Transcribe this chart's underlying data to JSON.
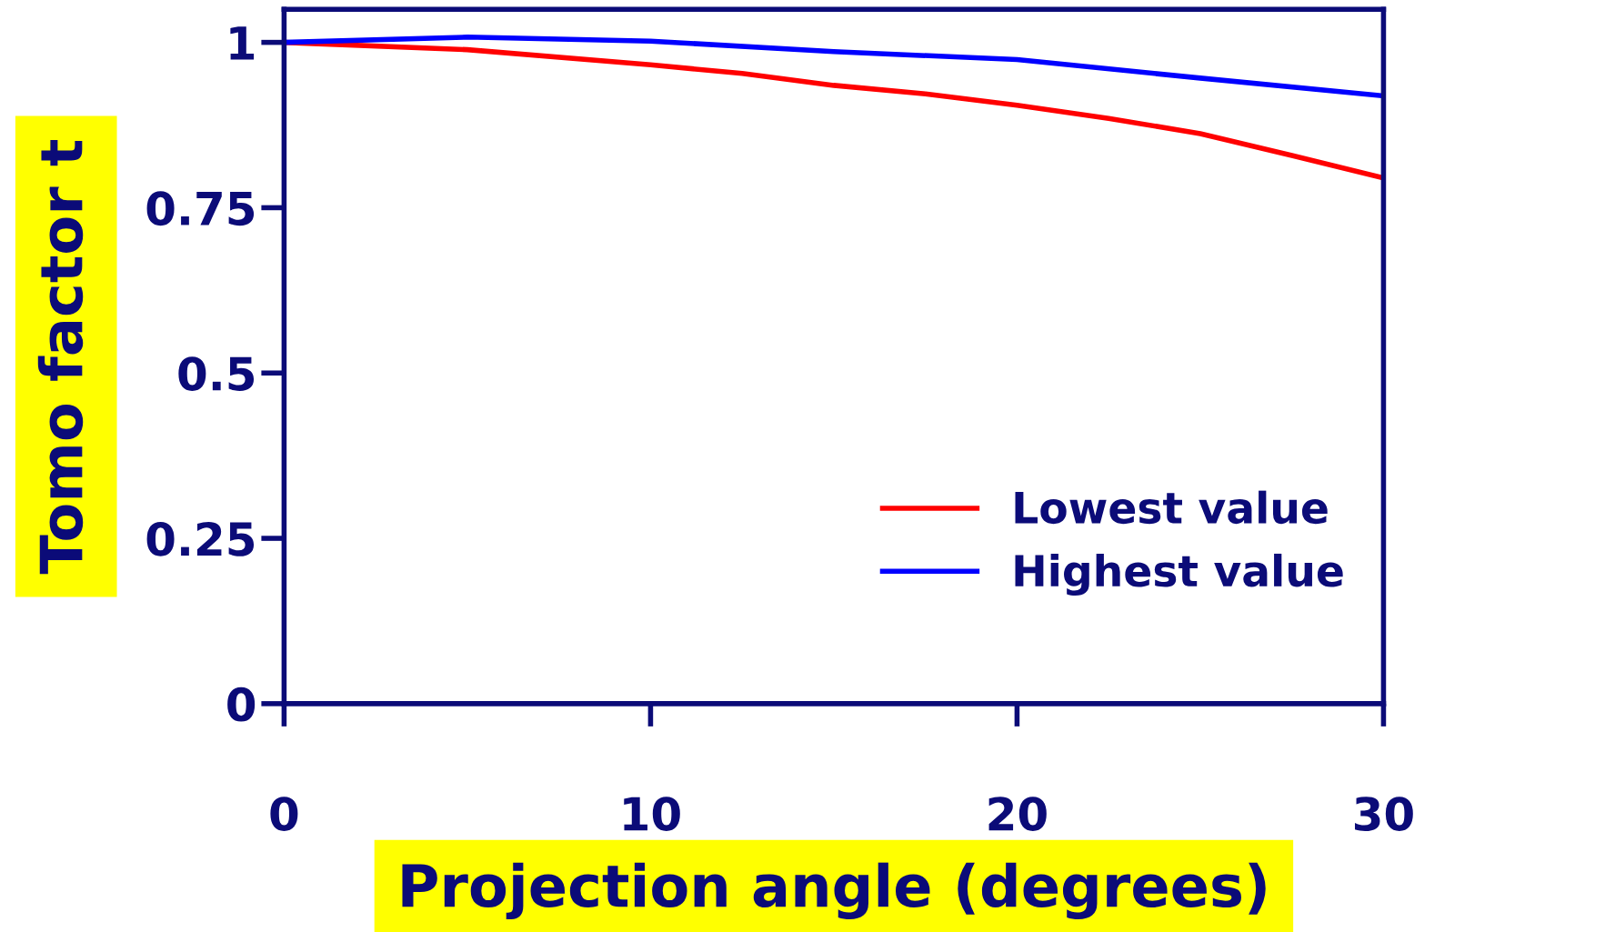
{
  "chart_data": {
    "type": "line",
    "xlabel": "Projection angle (degrees)",
    "ylabel": "Tomo factor t",
    "x": [
      0,
      5,
      10,
      12.5,
      15,
      17.5,
      20,
      22.5,
      25,
      27.5,
      30
    ],
    "series": [
      {
        "name": "Lowest value",
        "color": "#ff0000",
        "values": [
          1,
          0.989,
          0.966,
          0.953,
          0.935,
          0.922,
          0.905,
          0.885,
          0.862,
          0.829,
          0.795
        ]
      },
      {
        "name": "Highest value",
        "color": "#0000ff",
        "x": [
          0,
          5,
          10,
          15,
          20,
          25,
          30
        ],
        "values": [
          1,
          1.008,
          1.002,
          0.986,
          0.974,
          0.946,
          0.919
        ]
      }
    ],
    "xlim": [
      0,
      30
    ],
    "xticks": [
      0,
      10,
      20,
      30
    ],
    "ylim": [
      0,
      1.05
    ],
    "yticks": [
      0,
      0.25,
      0.5,
      0.75,
      1
    ],
    "legend": "lower right",
    "grid": false
  }
}
